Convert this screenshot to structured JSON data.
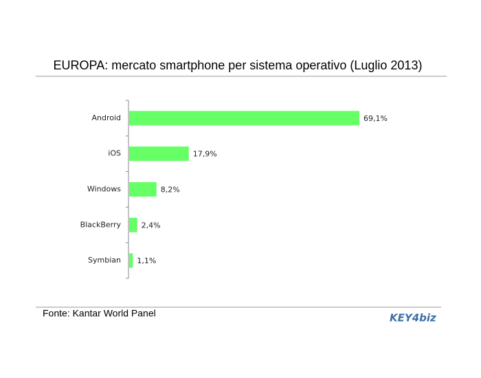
{
  "chart_data": {
    "type": "hbar",
    "title": "EUROPA: mercato smartphone per sistema operativo (Luglio 2013)",
    "categories": [
      "Android",
      "iOS",
      "Windows",
      "BlackBerry",
      "Symbian"
    ],
    "values": [
      69.1,
      17.9,
      8.2,
      2.4,
      1.1
    ],
    "value_labels": [
      "69,1%",
      "17,9%",
      "8,2%",
      "2,4%",
      "1,1%"
    ],
    "color": "#66ff66"
  },
  "source": "Fonte: Kantar World Panel",
  "logo": "KEY4biz"
}
